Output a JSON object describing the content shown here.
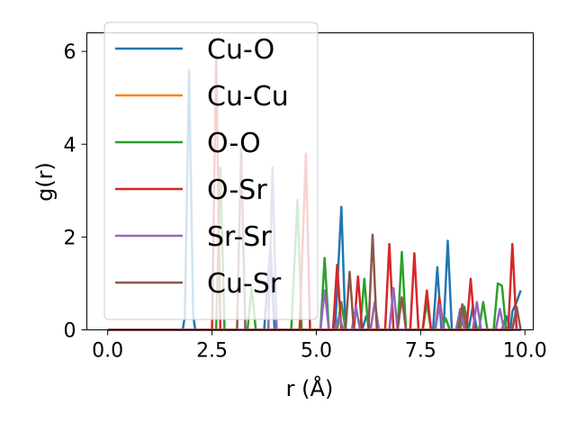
{
  "chart_data": {
    "type": "line",
    "xlabel": "r (Å)",
    "ylabel": "g(r)",
    "xlim": [
      -0.5,
      10.2
    ],
    "ylim": [
      0,
      6.4
    ],
    "xticks": [
      "0.0",
      "2.5",
      "5.0",
      "7.5",
      "10.0"
    ],
    "xtick_values": [
      0,
      2.5,
      5.0,
      7.5,
      10.0
    ],
    "yticks": [
      "0",
      "2",
      "4",
      "6"
    ],
    "ytick_values": [
      0,
      2,
      4,
      6
    ],
    "grid": false,
    "legend_position": "top-left",
    "series": [
      {
        "name": "Cu-O",
        "color": "#1f77b4",
        "points": [
          [
            0.0,
            0
          ],
          [
            1.8,
            0
          ],
          [
            1.85,
            0.3
          ],
          [
            1.95,
            5.6
          ],
          [
            2.05,
            0.3
          ],
          [
            2.1,
            0
          ],
          [
            3.75,
            0
          ],
          [
            3.9,
            1.8
          ],
          [
            4.0,
            0
          ],
          [
            5.45,
            0
          ],
          [
            5.6,
            2.65
          ],
          [
            5.7,
            0
          ],
          [
            6.1,
            0
          ],
          [
            6.2,
            0.3
          ],
          [
            6.3,
            0
          ],
          [
            7.8,
            0
          ],
          [
            7.9,
            1.35
          ],
          [
            8.0,
            0
          ],
          [
            8.05,
            0
          ],
          [
            8.15,
            1.92
          ],
          [
            8.25,
            0
          ],
          [
            8.65,
            0
          ],
          [
            8.75,
            0.5
          ],
          [
            8.85,
            0
          ],
          [
            9.45,
            0
          ],
          [
            9.55,
            0.3
          ],
          [
            9.65,
            0
          ],
          [
            9.7,
            0.4
          ],
          [
            9.8,
            0.6
          ],
          [
            9.9,
            0.85
          ]
        ]
      },
      {
        "name": "Cu-Cu",
        "color": "#ff7f0e",
        "points": [
          [
            0.0,
            0
          ],
          [
            9.9,
            0
          ]
        ]
      },
      {
        "name": "O-O",
        "color": "#2ca02c",
        "points": [
          [
            0.0,
            0
          ],
          [
            2.6,
            0
          ],
          [
            2.7,
            3.5
          ],
          [
            2.8,
            0
          ],
          [
            3.35,
            0
          ],
          [
            3.45,
            0.9
          ],
          [
            3.55,
            0
          ],
          [
            4.4,
            0
          ],
          [
            4.55,
            2.8
          ],
          [
            4.65,
            0
          ],
          [
            5.1,
            0
          ],
          [
            5.2,
            1.55
          ],
          [
            5.3,
            0
          ],
          [
            5.5,
            0
          ],
          [
            5.6,
            0.6
          ],
          [
            5.7,
            0
          ],
          [
            6.05,
            0
          ],
          [
            6.15,
            1.1
          ],
          [
            6.25,
            0
          ],
          [
            6.95,
            0
          ],
          [
            7.05,
            1.68
          ],
          [
            7.15,
            0
          ],
          [
            7.55,
            0
          ],
          [
            7.65,
            0.6
          ],
          [
            7.75,
            0
          ],
          [
            8.0,
            0
          ],
          [
            8.1,
            0.25
          ],
          [
            8.2,
            0
          ],
          [
            8.45,
            0
          ],
          [
            8.55,
            0.5
          ],
          [
            8.65,
            0
          ],
          [
            8.9,
            0
          ],
          [
            9.0,
            0.6
          ],
          [
            9.1,
            0
          ],
          [
            9.25,
            0
          ],
          [
            9.35,
            1.0
          ],
          [
            9.45,
            0.95
          ],
          [
            9.55,
            0
          ],
          [
            9.9,
            0
          ]
        ]
      },
      {
        "name": "O-Sr",
        "color": "#d62728",
        "points": [
          [
            0.0,
            0
          ],
          [
            2.5,
            0
          ],
          [
            2.6,
            5.9
          ],
          [
            2.7,
            0
          ],
          [
            4.6,
            0
          ],
          [
            4.75,
            3.8
          ],
          [
            4.85,
            0
          ],
          [
            5.4,
            0
          ],
          [
            5.5,
            1.4
          ],
          [
            5.6,
            0
          ],
          [
            5.9,
            0
          ],
          [
            6.0,
            1.15
          ],
          [
            6.1,
            0
          ],
          [
            6.65,
            0
          ],
          [
            6.75,
            1.85
          ],
          [
            6.85,
            0
          ],
          [
            7.25,
            0
          ],
          [
            7.35,
            1.65
          ],
          [
            7.45,
            0
          ],
          [
            7.55,
            0
          ],
          [
            7.65,
            0.85
          ],
          [
            7.75,
            0
          ],
          [
            7.85,
            0
          ],
          [
            7.95,
            0.7
          ],
          [
            8.05,
            0
          ],
          [
            8.6,
            0
          ],
          [
            8.7,
            1.1
          ],
          [
            8.8,
            0
          ],
          [
            9.6,
            0
          ],
          [
            9.7,
            1.85
          ],
          [
            9.8,
            0
          ],
          [
            9.9,
            0
          ]
        ]
      },
      {
        "name": "Sr-Sr",
        "color": "#9467bd",
        "points": [
          [
            0.0,
            0
          ],
          [
            3.85,
            0
          ],
          [
            3.95,
            3.5
          ],
          [
            4.05,
            0
          ],
          [
            5.1,
            0
          ],
          [
            5.2,
            0.85
          ],
          [
            5.3,
            0
          ],
          [
            5.45,
            0
          ],
          [
            5.55,
            0.3
          ],
          [
            5.65,
            0
          ],
          [
            5.85,
            0
          ],
          [
            5.95,
            0.5
          ],
          [
            6.05,
            0
          ],
          [
            6.3,
            0
          ],
          [
            6.4,
            0.6
          ],
          [
            6.5,
            0
          ],
          [
            6.75,
            0
          ],
          [
            6.85,
            0.9
          ],
          [
            6.95,
            0
          ],
          [
            7.85,
            0
          ],
          [
            7.95,
            0.55
          ],
          [
            8.05,
            0
          ],
          [
            8.35,
            0
          ],
          [
            8.45,
            0.45
          ],
          [
            8.55,
            0
          ],
          [
            8.75,
            0
          ],
          [
            8.85,
            0.6
          ],
          [
            8.95,
            0
          ],
          [
            9.3,
            0
          ],
          [
            9.4,
            0.45
          ],
          [
            9.5,
            0
          ],
          [
            9.9,
            0
          ]
        ]
      },
      {
        "name": "Cu-Sr",
        "color": "#8c564b",
        "points": [
          [
            0.0,
            0
          ],
          [
            3.1,
            0
          ],
          [
            3.2,
            3.9
          ],
          [
            3.3,
            0
          ],
          [
            5.7,
            0
          ],
          [
            5.8,
            1.25
          ],
          [
            5.9,
            0
          ],
          [
            6.25,
            0
          ],
          [
            6.35,
            2.05
          ],
          [
            6.45,
            0
          ],
          [
            6.95,
            0
          ],
          [
            7.05,
            0.7
          ],
          [
            7.15,
            0
          ],
          [
            8.4,
            0
          ],
          [
            8.5,
            0.55
          ],
          [
            8.6,
            0
          ],
          [
            9.7,
            0
          ],
          [
            9.8,
            0.5
          ],
          [
            9.9,
            0
          ]
        ]
      }
    ]
  }
}
